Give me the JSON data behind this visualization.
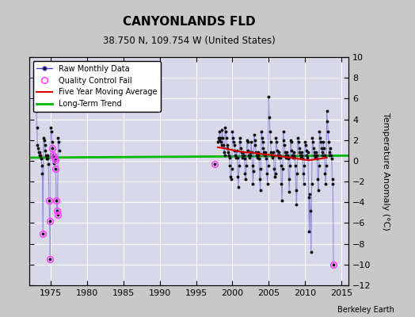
{
  "title": "CANYONLANDS FLD",
  "subtitle": "38.750 N, 109.754 W (United States)",
  "ylabel": "Temperature Anomaly (°C)",
  "credit": "Berkeley Earth",
  "xlim": [
    1972,
    2016
  ],
  "ylim": [
    -12,
    10
  ],
  "yticks": [
    -12,
    -10,
    -8,
    -6,
    -4,
    -2,
    0,
    2,
    4,
    6,
    8,
    10
  ],
  "xticks": [
    1975,
    1980,
    1985,
    1990,
    1995,
    2000,
    2005,
    2010,
    2015
  ],
  "fig_bg_color": "#c8c8c8",
  "plot_bg_color": "#d8d8e8",
  "grid_color": "#ffffff",
  "raw_line_color": "#4444cc",
  "raw_line_alpha": 0.5,
  "raw_dot_color": "#111111",
  "qc_fail_color": "#ff44ff",
  "moving_avg_color": "#dd0000",
  "trend_color": "#00bb00",
  "raw_data": [
    [
      1973.0,
      4.8
    ],
    [
      1973.083,
      3.2
    ],
    [
      1973.167,
      1.5
    ],
    [
      1973.25,
      1.2
    ],
    [
      1973.333,
      0.8
    ],
    [
      1973.417,
      0.5
    ],
    [
      1973.5,
      0.8
    ],
    [
      1973.583,
      0.5
    ],
    [
      1973.667,
      0.2
    ],
    [
      1973.75,
      -0.5
    ],
    [
      1973.833,
      -1.2
    ],
    [
      1973.917,
      -7.0
    ],
    [
      1974.0,
      2.2
    ],
    [
      1974.083,
      2.0
    ],
    [
      1974.167,
      1.5
    ],
    [
      1974.25,
      1.0
    ],
    [
      1974.333,
      0.5
    ],
    [
      1974.417,
      0.2
    ],
    [
      1974.5,
      0.5
    ],
    [
      1974.583,
      0.2
    ],
    [
      1974.667,
      -0.3
    ],
    [
      1974.75,
      -3.8
    ],
    [
      1974.833,
      -5.8
    ],
    [
      1974.917,
      -9.5
    ],
    [
      1975.0,
      3.2
    ],
    [
      1975.083,
      2.8
    ],
    [
      1975.167,
      1.8
    ],
    [
      1975.25,
      1.2
    ],
    [
      1975.333,
      0.5
    ],
    [
      1975.417,
      -0.2
    ],
    [
      1975.5,
      0.3
    ],
    [
      1975.583,
      0.1
    ],
    [
      1975.667,
      -0.8
    ],
    [
      1975.75,
      -3.8
    ],
    [
      1975.833,
      -4.8
    ],
    [
      1975.917,
      -5.2
    ],
    [
      1976.0,
      2.2
    ],
    [
      1976.083,
      1.8
    ],
    [
      1976.167,
      1.0
    ],
    [
      1997.5,
      -0.3
    ],
    [
      1998.0,
      1.8
    ],
    [
      1998.083,
      2.2
    ],
    [
      1998.167,
      2.0
    ],
    [
      1998.25,
      2.8
    ],
    [
      1998.333,
      2.2
    ],
    [
      1998.417,
      1.8
    ],
    [
      1998.5,
      1.5
    ],
    [
      1998.583,
      3.0
    ],
    [
      1998.667,
      2.2
    ],
    [
      1998.75,
      1.5
    ],
    [
      1998.833,
      0.8
    ],
    [
      1998.917,
      0.5
    ],
    [
      1999.0,
      3.2
    ],
    [
      1999.083,
      2.8
    ],
    [
      1999.167,
      2.2
    ],
    [
      1999.25,
      1.5
    ],
    [
      1999.333,
      1.2
    ],
    [
      1999.417,
      0.8
    ],
    [
      1999.5,
      0.5
    ],
    [
      1999.583,
      0.3
    ],
    [
      1999.667,
      -0.5
    ],
    [
      1999.75,
      -1.5
    ],
    [
      1999.833,
      -1.8
    ],
    [
      1999.917,
      -0.8
    ],
    [
      2000.0,
      2.8
    ],
    [
      2000.083,
      2.2
    ],
    [
      2000.167,
      1.8
    ],
    [
      2000.25,
      1.5
    ],
    [
      2000.333,
      1.0
    ],
    [
      2000.417,
      0.5
    ],
    [
      2000.5,
      0.3
    ],
    [
      2000.583,
      1.0
    ],
    [
      2000.667,
      0.3
    ],
    [
      2000.75,
      -1.5
    ],
    [
      2000.833,
      -2.5
    ],
    [
      2000.917,
      -0.5
    ],
    [
      2001.0,
      2.2
    ],
    [
      2001.083,
      1.8
    ],
    [
      2001.167,
      1.2
    ],
    [
      2001.25,
      0.8
    ],
    [
      2001.333,
      0.5
    ],
    [
      2001.417,
      0.3
    ],
    [
      2001.5,
      0.8
    ],
    [
      2001.583,
      0.5
    ],
    [
      2001.667,
      0.2
    ],
    [
      2001.75,
      -1.2
    ],
    [
      2001.833,
      -1.8
    ],
    [
      2001.917,
      -0.5
    ],
    [
      2002.0,
      2.0
    ],
    [
      2002.083,
      1.8
    ],
    [
      2002.167,
      1.0
    ],
    [
      2002.25,
      0.5
    ],
    [
      2002.333,
      0.3
    ],
    [
      2002.417,
      0.8
    ],
    [
      2002.5,
      0.5
    ],
    [
      2002.583,
      1.8
    ],
    [
      2002.667,
      0.8
    ],
    [
      2002.75,
      -0.5
    ],
    [
      2002.833,
      -2.2
    ],
    [
      2002.917,
      -1.0
    ],
    [
      2003.0,
      2.5
    ],
    [
      2003.083,
      2.0
    ],
    [
      2003.167,
      1.5
    ],
    [
      2003.25,
      0.8
    ],
    [
      2003.333,
      0.5
    ],
    [
      2003.417,
      0.3
    ],
    [
      2003.5,
      0.8
    ],
    [
      2003.583,
      0.5
    ],
    [
      2003.667,
      0.2
    ],
    [
      2003.75,
      -1.8
    ],
    [
      2003.833,
      -2.8
    ],
    [
      2003.917,
      -0.8
    ],
    [
      2004.0,
      2.8
    ],
    [
      2004.083,
      2.2
    ],
    [
      2004.167,
      1.8
    ],
    [
      2004.25,
      1.2
    ],
    [
      2004.333,
      0.8
    ],
    [
      2004.417,
      0.5
    ],
    [
      2004.5,
      0.8
    ],
    [
      2004.583,
      0.5
    ],
    [
      2004.667,
      0.2
    ],
    [
      2004.75,
      -1.2
    ],
    [
      2004.833,
      -2.2
    ],
    [
      2004.917,
      -0.5
    ],
    [
      2005.0,
      6.2
    ],
    [
      2005.083,
      4.2
    ],
    [
      2005.167,
      2.8
    ],
    [
      2005.25,
      1.8
    ],
    [
      2005.333,
      0.8
    ],
    [
      2005.417,
      0.5
    ],
    [
      2005.5,
      0.3
    ],
    [
      2005.583,
      0.8
    ],
    [
      2005.667,
      0.5
    ],
    [
      2005.75,
      -0.8
    ],
    [
      2005.833,
      -1.5
    ],
    [
      2005.917,
      -1.2
    ],
    [
      2006.0,
      2.2
    ],
    [
      2006.083,
      1.8
    ],
    [
      2006.167,
      1.0
    ],
    [
      2006.25,
      0.5
    ],
    [
      2006.333,
      0.3
    ],
    [
      2006.417,
      0.8
    ],
    [
      2006.5,
      0.5
    ],
    [
      2006.583,
      0.3
    ],
    [
      2006.667,
      -0.5
    ],
    [
      2006.75,
      -2.2
    ],
    [
      2006.833,
      -3.8
    ],
    [
      2006.917,
      -0.8
    ],
    [
      2007.0,
      2.8
    ],
    [
      2007.083,
      2.0
    ],
    [
      2007.167,
      1.5
    ],
    [
      2007.25,
      0.8
    ],
    [
      2007.333,
      0.5
    ],
    [
      2007.417,
      0.3
    ],
    [
      2007.5,
      0.8
    ],
    [
      2007.583,
      0.5
    ],
    [
      2007.667,
      0.2
    ],
    [
      2007.75,
      -1.8
    ],
    [
      2007.833,
      -3.0
    ],
    [
      2007.917,
      -0.5
    ],
    [
      2008.0,
      2.0
    ],
    [
      2008.083,
      1.8
    ],
    [
      2008.167,
      1.0
    ],
    [
      2008.25,
      0.5
    ],
    [
      2008.333,
      0.3
    ],
    [
      2008.417,
      0.8
    ],
    [
      2008.5,
      0.5
    ],
    [
      2008.583,
      0.3
    ],
    [
      2008.667,
      -0.5
    ],
    [
      2008.75,
      -2.8
    ],
    [
      2008.833,
      -4.2
    ],
    [
      2008.917,
      -1.2
    ],
    [
      2009.0,
      2.2
    ],
    [
      2009.083,
      1.8
    ],
    [
      2009.167,
      1.2
    ],
    [
      2009.25,
      0.8
    ],
    [
      2009.333,
      0.5
    ],
    [
      2009.417,
      0.3
    ],
    [
      2009.5,
      0.8
    ],
    [
      2009.583,
      0.5
    ],
    [
      2009.667,
      0.2
    ],
    [
      2009.75,
      -1.2
    ],
    [
      2009.833,
      -2.2
    ],
    [
      2009.917,
      -0.5
    ],
    [
      2010.0,
      1.8
    ],
    [
      2010.083,
      1.5
    ],
    [
      2010.167,
      1.0
    ],
    [
      2010.25,
      0.5
    ],
    [
      2010.333,
      0.3
    ],
    [
      2010.417,
      0.8
    ],
    [
      2010.5,
      -3.5
    ],
    [
      2010.583,
      -6.8
    ],
    [
      2010.667,
      -3.2
    ],
    [
      2010.75,
      -4.8
    ],
    [
      2010.833,
      -8.8
    ],
    [
      2010.917,
      -2.2
    ],
    [
      2011.0,
      2.2
    ],
    [
      2011.083,
      1.8
    ],
    [
      2011.167,
      1.2
    ],
    [
      2011.25,
      0.8
    ],
    [
      2011.333,
      0.5
    ],
    [
      2011.417,
      0.3
    ],
    [
      2011.5,
      0.8
    ],
    [
      2011.583,
      0.5
    ],
    [
      2011.667,
      0.2
    ],
    [
      2011.75,
      -1.8
    ],
    [
      2011.833,
      -2.8
    ],
    [
      2011.917,
      -0.5
    ],
    [
      2012.0,
      2.8
    ],
    [
      2012.083,
      2.2
    ],
    [
      2012.167,
      1.8
    ],
    [
      2012.25,
      1.2
    ],
    [
      2012.333,
      0.8
    ],
    [
      2012.417,
      0.5
    ],
    [
      2012.5,
      1.8
    ],
    [
      2012.583,
      1.2
    ],
    [
      2012.667,
      0.5
    ],
    [
      2012.75,
      -1.2
    ],
    [
      2012.833,
      -2.2
    ],
    [
      2012.917,
      -0.5
    ],
    [
      2013.0,
      4.8
    ],
    [
      2013.083,
      3.8
    ],
    [
      2013.167,
      2.8
    ],
    [
      2013.25,
      1.8
    ],
    [
      2013.333,
      0.8
    ],
    [
      2013.417,
      0.5
    ],
    [
      2013.5,
      1.2
    ],
    [
      2013.583,
      0.5
    ],
    [
      2013.667,
      0.2
    ],
    [
      2013.75,
      -1.8
    ],
    [
      2013.833,
      -2.2
    ],
    [
      2013.917,
      -10.0
    ]
  ],
  "qc_fail_points": [
    [
      1973.917,
      -7.0
    ],
    [
      1974.75,
      -3.8
    ],
    [
      1974.833,
      -5.8
    ],
    [
      1974.917,
      -9.5
    ],
    [
      1975.25,
      1.2
    ],
    [
      1975.333,
      0.5
    ],
    [
      1975.5,
      0.3
    ],
    [
      1975.583,
      0.1
    ],
    [
      1975.667,
      -0.8
    ],
    [
      1975.75,
      -3.8
    ],
    [
      1975.833,
      -4.8
    ],
    [
      1975.917,
      -5.2
    ],
    [
      1997.5,
      -0.3
    ],
    [
      2013.917,
      -10.0
    ]
  ],
  "moving_avg_data": [
    [
      1998.0,
      1.3
    ],
    [
      1998.5,
      1.25
    ],
    [
      1999.0,
      1.2
    ],
    [
      1999.5,
      1.1
    ],
    [
      2000.0,
      1.05
    ],
    [
      2000.5,
      0.95
    ],
    [
      2001.0,
      0.9
    ],
    [
      2001.5,
      0.85
    ],
    [
      2002.0,
      0.8
    ],
    [
      2002.5,
      0.82
    ],
    [
      2003.0,
      0.75
    ],
    [
      2003.5,
      0.7
    ],
    [
      2004.0,
      0.65
    ],
    [
      2004.5,
      0.6
    ],
    [
      2005.0,
      0.6
    ],
    [
      2005.5,
      0.55
    ],
    [
      2006.0,
      0.5
    ],
    [
      2006.5,
      0.45
    ],
    [
      2007.0,
      0.4
    ],
    [
      2007.5,
      0.35
    ],
    [
      2008.0,
      0.3
    ],
    [
      2008.5,
      0.25
    ],
    [
      2009.0,
      0.2
    ],
    [
      2009.5,
      0.15
    ],
    [
      2010.0,
      0.1
    ],
    [
      2010.5,
      0.05
    ],
    [
      2011.0,
      0.1
    ],
    [
      2011.5,
      0.15
    ],
    [
      2012.0,
      0.2
    ],
    [
      2012.5,
      0.25
    ],
    [
      2013.0,
      0.3
    ]
  ],
  "trend_x": [
    1972,
    2016
  ],
  "trend_y": [
    0.3,
    0.5
  ]
}
